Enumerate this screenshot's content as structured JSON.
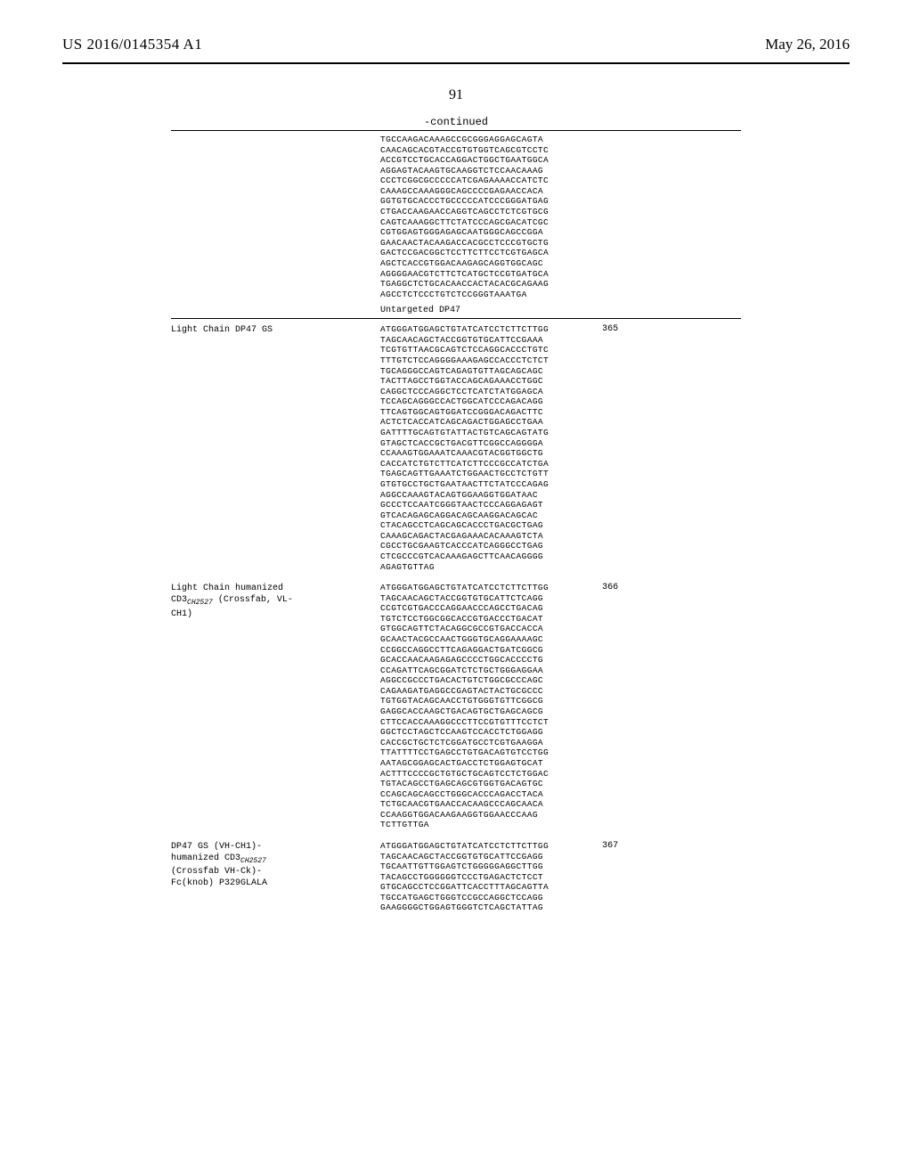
{
  "header": {
    "publication_number": "US 2016/0145354 A1",
    "date": "May 26, 2016",
    "page_number": "91",
    "continued_label": "-continued"
  },
  "orphan_sequence": "TGCCAAGACAAAGCCGCGGGAGGAGCAGTA\nCAACAGCACGTACCGTGTGGTCAGCGTCCTC\nACCGTCCTGCACCAGGACTGGCTGAATGGCA\nAGGAGTACAAGTGCAAGGTCTCCAACAAAG\nCCCTCGGCGCCCCCATCGAGAAAACCATCTC\nCAAAGCCAAAGGGCAGCCCCGAGAACCACA\nGGTGTGCACCCTGCCCCCATCCCGGGATGAG\nCTGACCAAGAACCAGGTCAGCCTCTCGTGCG\nCAGTCAAAGGCTTCTATCCCAGCGACATCGC\nCGTGGAGTGGGAGAGCAATGGGCAGCCGGA\nGAACAACTACAAGACCACGCCTCCCGTGCTG\nGACTCCGACGGCTCCTTCTTCCTCGTGAGCA\nAGCTCACCGTGGACAAGAGCAGGTGGCAGC\nAGGGGAACGTCTTCTCATGCTCCGTGATGCA\nTGAGGCTCTGCACAACCACTACACGCAGAAG\nAGCCTCTCCCTGTCTCCGGGTAAATGA",
  "subheader": "Untargeted DP47",
  "rows": [
    {
      "label_plain": "Light Chain DP47 GS",
      "label_html": "Light Chain DP47 GS",
      "seq_id": "365",
      "sequence": "ATGGGATGGAGCTGTATCATCCTCTTCTTGG\nTAGCAACAGCTACCGGTGTGCATTCCGAAA\nTCGTGTTAACGCAGTCTCCAGGCACCCTGTC\nTTTGTCTCCAGGGGAAAGAGCCACCCTCTCT\nTGCAGGGCCAGTCAGAGTGTTAGCAGCAGC\nTACTTAGCCTGGTACCAGCAGAAACCTGGC\nCAGGCTCCCAGGCTCCTCATCTATGGAGCA\nTCCAGCAGGGCCACTGGCATCCCAGACAGG\nTTCAGTGGCAGTGGATCCGGGACAGACTTC\nACTCTCACCATCAGCAGACTGGAGCCTGAA\nGATTTTGCAGTGTATTACTGTCAGCAGTATG\nGTAGCTCACCGCTGACGTTCGGCCAGGGGA\nCCAAAGTGGAAATCAAACGTACGGTGGCTG\nCACCATCTGTCTTCATCTTCCCGCCATCTGA\nTGAGCAGTTGAAATCTGGAACTGCCTCTGTT\nGTGTGCCTGCTGAATAACTTCTATCCCAGAG\nAGGCCAAAGTACAGTGGAAGGTGGATAAC\nGCCCTCCAATCGGGTAACTCCCAGGAGAGT\nGTCACAGAGCAGGACAGCAAGGACAGCAC\nCTACAGCCTCAGCAGCACCCTGACGCTGAG\nCAAAGCAGACTACGAGAAACACAAAGTCTA\nCGCCTGCGAAGTCACCCATCAGGGCCTGAG\nCTCGCCCGTCACAAAGAGCTTCAACAGGGG\nAGAGTGTTAG"
    },
    {
      "label_plain": "Light Chain humanized CD3_CH2527 (Crossfab, VL-CH1)",
      "label_html": "Light Chain humanized\nCD3<span class=\"sub\">CH2527</span> (Crossfab, VL-\nCH1)",
      "seq_id": "366",
      "sequence": "ATGGGATGGAGCTGTATCATCCTCTTCTTGG\nTAGCAACAGCTACCGGTGTGCATTCTCAGG\nCCGTCGTGACCCAGGAACCCAGCCTGACAG\nTGTCTCCTGGCGGCACCGTGACCCTGACAT\nGTGGCAGTTCTACAGGCGCCGTGACCACCA\nGCAACTACGCCAACTGGGTGCAGGAAAAGC\nCCGGCCAGGCCTTCAGAGGACTGATCGGCG\nGCACCAACAAGAGAGCCCCTGGCACCCCTG\nCCAGATTCAGCGGATCTCTGCTGGGAGGAA\nAGGCCGCCCTGACACTGTCTGGCGCCCAGC\nCAGAAGATGAGGCCGAGTACTACTGCGCCC\nTGTGGTACAGCAACCTGTGGGTGTTCGGCG\nGAGGCACCAAGCTGACAGTGCTGAGCAGCG\nCTTCCACCAAAGGCCCTTCCGTGTTTCCTCT\nGGCTCCTAGCTCCAAGTCCACCTCTGGAGG\nCACCGCTGCTCTCGGATGCCTCGTGAAGGA\nTTATTTTCCTGAGCCTGTGACAGTGTCCTGG\nAATAGCGGAGCACTGACCTCTGGAGTGCAT\nACTTTCCCCGCTGTGCTGCAGTCCTCTGGAC\nTGTACAGCCTGAGCAGCGTGGTGACAGTGC\nCCAGCAGCAGCCTGGGCACCCAGACCTACA\nTCTGCAACGTGAACCACAAGCCCAGCAACA\nCCAAGGTGGACAAGAAGGTGGAACCCAAG\nTCTTGTTGA"
    },
    {
      "label_plain": "DP47 GS (VH-CH1)- humanized CD3_CH2527 (Crossfab VH-Ck)- Fc(knob) P329GLALA",
      "label_html": "DP47 GS (VH-CH1)-\nhumanized CD3<span class=\"sub\">CH2527</span>\n(Crossfab VH-Ck)-\nFc(knob) P329GLALA",
      "seq_id": "367",
      "sequence": "ATGGGATGGAGCTGTATCATCCTCTTCTTGG\nTAGCAACAGCTACCGGTGTGCATTCCGAGG\nTGCAATTGTTGGAGTCTGGGGGAGGCTTGG\nTACAGCCTGGGGGGTCCCTGAGACTCTCCT\nGTGCAGCCTCCGGATTCACCTTTAGCAGTTA\nTGCCATGAGCTGGGTCCGCCAGGCTCCAGG\nGAAGGGGCTGGAGTGGGTCTCAGCTATTAG"
    }
  ]
}
